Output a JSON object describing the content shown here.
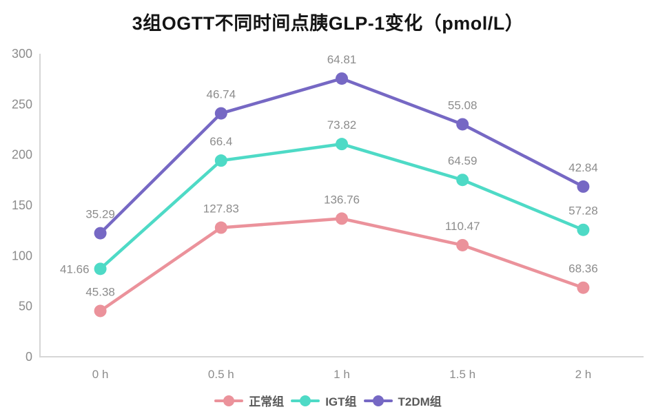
{
  "title": "3组OGTT不同时间点胰GLP-1变化（pmol/L）",
  "chart_data": {
    "type": "line",
    "subtype": "stacked-line-with-markers",
    "title": "3组OGTT不同时间点胰GLP-1变化（pmol/L）",
    "categories": [
      "0 h",
      "0.5 h",
      "1 h",
      "1.5 h",
      "2 h"
    ],
    "series": [
      {
        "name": "正常组",
        "slug": "normal-group",
        "color": "#EB929B",
        "values": [
          45.38,
          127.83,
          136.76,
          110.47,
          68.36
        ],
        "labels": [
          "45.38",
          "127.83",
          "136.76",
          "110.47",
          "68.36"
        ]
      },
      {
        "name": "IGT组",
        "slug": "igt-group",
        "color": "#4EDAC6",
        "values": [
          41.66,
          66.4,
          73.82,
          64.59,
          57.28
        ],
        "labels": [
          "41.66",
          "66.4",
          "73.82",
          "64.59",
          "57.28"
        ]
      },
      {
        "name": "T2DM组",
        "slug": "t2dm-group",
        "color": "#7668C4",
        "values": [
          35.29,
          46.74,
          64.81,
          55.08,
          42.84
        ],
        "labels": [
          "35.29",
          "46.74",
          "64.81",
          "55.08",
          "42.84"
        ]
      }
    ],
    "stacked": true,
    "plotted_cumulative": {
      "正常组": [
        45.38,
        127.83,
        136.76,
        110.47,
        68.36
      ],
      "IGT组": [
        87.04,
        194.23,
        210.58,
        175.06,
        125.64
      ],
      "T2DM组": [
        122.33,
        240.97,
        275.39,
        230.14,
        168.48
      ]
    },
    "xlabel": "",
    "ylabel": "",
    "ylim": [
      0,
      300
    ],
    "y_ticks": [
      0,
      50,
      100,
      150,
      200,
      250,
      300
    ],
    "grid": false,
    "legend_position": "bottom",
    "data_labels": true,
    "label_overrides": [
      {
        "series": 1,
        "point": 0,
        "position": "left"
      }
    ]
  },
  "style": {
    "axis_color": "#d6d6d6",
    "tick_label_color": "#8c8c8c",
    "data_label_color": "#8c8c8c",
    "legend_text_color": "#595959",
    "title_color": "#141414",
    "background": "#ffffff"
  }
}
